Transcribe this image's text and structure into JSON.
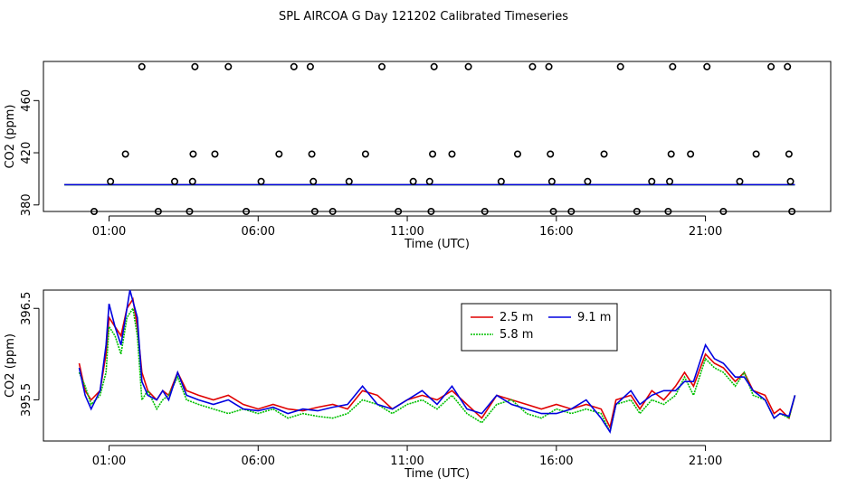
{
  "title": "SPL AIRCOA G  Day 121202  Calibrated Timeseries",
  "colors": {
    "red": "#e00000",
    "green": "#00c000",
    "blue": "#0000e0",
    "axis": "#000000"
  },
  "chart_data": [
    {
      "type": "scatter",
      "id": "top",
      "xlabel": "Time (UTC)",
      "ylabel": "CO2 (ppm)",
      "xticks": [
        {
          "v": 1,
          "label": "01:00"
        },
        {
          "v": 6,
          "label": "06:00"
        },
        {
          "v": 11,
          "label": "11:00"
        },
        {
          "v": 16,
          "label": "16:00"
        },
        {
          "v": 21,
          "label": "21:00"
        }
      ],
      "yticks": [
        380,
        420,
        460
      ],
      "xlim": [
        -1.2,
        25.2
      ],
      "ylim": [
        375,
        490
      ],
      "points": [
        [
          0.5,
          375
        ],
        [
          1.05,
          398
        ],
        [
          1.55,
          419
        ],
        [
          2.1,
          486
        ],
        [
          2.65,
          375
        ],
        [
          3.2,
          398
        ],
        [
          3.7,
          375
        ],
        [
          3.8,
          398
        ],
        [
          3.82,
          419
        ],
        [
          3.88,
          486
        ],
        [
          4.55,
          419
        ],
        [
          5.0,
          486
        ],
        [
          5.6,
          375
        ],
        [
          6.1,
          398
        ],
        [
          6.7,
          419
        ],
        [
          7.2,
          486
        ],
        [
          7.75,
          486
        ],
        [
          7.8,
          419
        ],
        [
          7.85,
          398
        ],
        [
          7.9,
          375
        ],
        [
          8.5,
          375
        ],
        [
          9.05,
          398
        ],
        [
          9.6,
          419
        ],
        [
          10.15,
          486
        ],
        [
          10.7,
          375
        ],
        [
          11.2,
          398
        ],
        [
          11.75,
          398
        ],
        [
          11.8,
          375
        ],
        [
          11.85,
          419
        ],
        [
          11.9,
          486
        ],
        [
          12.5,
          419
        ],
        [
          13.05,
          486
        ],
        [
          13.6,
          375
        ],
        [
          14.15,
          398
        ],
        [
          14.7,
          419
        ],
        [
          15.2,
          486
        ],
        [
          15.75,
          486
        ],
        [
          15.8,
          419
        ],
        [
          15.85,
          398
        ],
        [
          15.9,
          375
        ],
        [
          16.5,
          375
        ],
        [
          17.05,
          398
        ],
        [
          17.6,
          419
        ],
        [
          18.15,
          486
        ],
        [
          18.7,
          375
        ],
        [
          19.2,
          398
        ],
        [
          19.75,
          375
        ],
        [
          19.8,
          398
        ],
        [
          19.85,
          419
        ],
        [
          19.9,
          486
        ],
        [
          20.5,
          419
        ],
        [
          21.05,
          486
        ],
        [
          21.6,
          375
        ],
        [
          22.15,
          398
        ],
        [
          22.7,
          419
        ],
        [
          23.2,
          486
        ],
        [
          23.75,
          486
        ],
        [
          23.8,
          419
        ],
        [
          23.85,
          398
        ],
        [
          23.9,
          375
        ]
      ],
      "series": [
        {
          "name": "2.5 m",
          "color": "red",
          "y": 395.5
        },
        {
          "name": "5.8 m",
          "color": "green",
          "y": 395.4
        },
        {
          "name": "9.1 m",
          "color": "blue",
          "y": 395.5
        }
      ]
    },
    {
      "type": "line",
      "id": "bottom",
      "xlabel": "Time (UTC)",
      "ylabel": "CO2 (ppm)",
      "xticks": [
        {
          "v": 1,
          "label": "01:00"
        },
        {
          "v": 6,
          "label": "06:00"
        },
        {
          "v": 11,
          "label": "11:00"
        },
        {
          "v": 16,
          "label": "16:00"
        },
        {
          "v": 21,
          "label": "21:00"
        }
      ],
      "yticks": [
        {
          "v": 395.5,
          "label": "395.5"
        },
        {
          "v": 396.5,
          "label": "396.5"
        }
      ],
      "xlim": [
        -1.2,
        25.2
      ],
      "ylim": [
        395.05,
        396.7
      ],
      "legend": {
        "position": "top-center"
      },
      "series": [
        {
          "name": "2.5 m",
          "color": "red",
          "points": [
            [
              0,
              395.9
            ],
            [
              0.2,
              395.6
            ],
            [
              0.4,
              395.5
            ],
            [
              0.7,
              395.6
            ],
            [
              0.9,
              396.0
            ],
            [
              1.0,
              396.4
            ],
            [
              1.2,
              396.3
            ],
            [
              1.4,
              396.2
            ],
            [
              1.6,
              396.5
            ],
            [
              1.8,
              396.6
            ],
            [
              1.95,
              396.3
            ],
            [
              2.1,
              395.8
            ],
            [
              2.3,
              395.6
            ],
            [
              2.6,
              395.5
            ],
            [
              2.8,
              395.6
            ],
            [
              3.0,
              395.55
            ],
            [
              3.3,
              395.8
            ],
            [
              3.6,
              395.6
            ],
            [
              4.0,
              395.55
            ],
            [
              4.5,
              395.5
            ],
            [
              5.0,
              395.55
            ],
            [
              5.5,
              395.45
            ],
            [
              6.0,
              395.4
            ],
            [
              6.5,
              395.45
            ],
            [
              7.0,
              395.4
            ],
            [
              7.5,
              395.38
            ],
            [
              8.0,
              395.42
            ],
            [
              8.5,
              395.45
            ],
            [
              9.0,
              395.4
            ],
            [
              9.5,
              395.6
            ],
            [
              10.0,
              395.55
            ],
            [
              10.5,
              395.4
            ],
            [
              11.0,
              395.5
            ],
            [
              11.5,
              395.55
            ],
            [
              12.0,
              395.5
            ],
            [
              12.5,
              395.6
            ],
            [
              13.0,
              395.45
            ],
            [
              13.5,
              395.3
            ],
            [
              14.0,
              395.55
            ],
            [
              14.5,
              395.5
            ],
            [
              15.0,
              395.45
            ],
            [
              15.5,
              395.4
            ],
            [
              16.0,
              395.45
            ],
            [
              16.5,
              395.4
            ],
            [
              17.0,
              395.45
            ],
            [
              17.5,
              395.4
            ],
            [
              17.8,
              395.2
            ],
            [
              18.0,
              395.5
            ],
            [
              18.5,
              395.55
            ],
            [
              18.8,
              395.4
            ],
            [
              19.2,
              395.6
            ],
            [
              19.6,
              395.5
            ],
            [
              20.0,
              395.65
            ],
            [
              20.3,
              395.8
            ],
            [
              20.6,
              395.65
            ],
            [
              21.0,
              396.0
            ],
            [
              21.3,
              395.9
            ],
            [
              21.6,
              395.85
            ],
            [
              22.0,
              395.7
            ],
            [
              22.3,
              395.8
            ],
            [
              22.6,
              395.6
            ],
            [
              23.0,
              395.55
            ],
            [
              23.3,
              395.35
            ],
            [
              23.5,
              395.4
            ],
            [
              23.8,
              395.3
            ],
            [
              24.0,
              395.55
            ]
          ]
        },
        {
          "name": "5.8 m",
          "color": "green",
          "points": [
            [
              0,
              395.8
            ],
            [
              0.2,
              395.65
            ],
            [
              0.4,
              395.45
            ],
            [
              0.7,
              395.55
            ],
            [
              0.9,
              395.8
            ],
            [
              1.0,
              396.3
            ],
            [
              1.2,
              396.2
            ],
            [
              1.4,
              396.0
            ],
            [
              1.6,
              396.4
            ],
            [
              1.8,
              396.5
            ],
            [
              1.95,
              396.2
            ],
            [
              2.1,
              395.5
            ],
            [
              2.3,
              395.6
            ],
            [
              2.6,
              395.4
            ],
            [
              2.8,
              395.5
            ],
            [
              3.0,
              395.55
            ],
            [
              3.3,
              395.75
            ],
            [
              3.6,
              395.5
            ],
            [
              4.0,
              395.45
            ],
            [
              4.5,
              395.4
            ],
            [
              5.0,
              395.35
            ],
            [
              5.5,
              395.4
            ],
            [
              6.0,
              395.35
            ],
            [
              6.5,
              395.4
            ],
            [
              7.0,
              395.3
            ],
            [
              7.5,
              395.35
            ],
            [
              8.0,
              395.32
            ],
            [
              8.5,
              395.3
            ],
            [
              9.0,
              395.35
            ],
            [
              9.5,
              395.5
            ],
            [
              10.0,
              395.45
            ],
            [
              10.5,
              395.35
            ],
            [
              11.0,
              395.45
            ],
            [
              11.5,
              395.5
            ],
            [
              12.0,
              395.4
            ],
            [
              12.5,
              395.55
            ],
            [
              13.0,
              395.35
            ],
            [
              13.5,
              395.25
            ],
            [
              14.0,
              395.45
            ],
            [
              14.5,
              395.5
            ],
            [
              15.0,
              395.35
            ],
            [
              15.5,
              395.3
            ],
            [
              16.0,
              395.4
            ],
            [
              16.5,
              395.35
            ],
            [
              17.0,
              395.4
            ],
            [
              17.5,
              395.35
            ],
            [
              17.8,
              395.15
            ],
            [
              18.0,
              395.45
            ],
            [
              18.5,
              395.5
            ],
            [
              18.8,
              395.35
            ],
            [
              19.2,
              395.5
            ],
            [
              19.6,
              395.45
            ],
            [
              20.0,
              395.55
            ],
            [
              20.3,
              395.75
            ],
            [
              20.6,
              395.55
            ],
            [
              21.0,
              395.95
            ],
            [
              21.3,
              395.85
            ],
            [
              21.6,
              395.8
            ],
            [
              22.0,
              395.65
            ],
            [
              22.3,
              395.8
            ],
            [
              22.6,
              395.55
            ],
            [
              23.0,
              395.5
            ],
            [
              23.3,
              395.3
            ],
            [
              23.5,
              395.35
            ],
            [
              23.8,
              395.3
            ],
            [
              24.0,
              395.55
            ]
          ]
        },
        {
          "name": "9.1 m",
          "color": "blue",
          "points": [
            [
              0,
              395.85
            ],
            [
              0.2,
              395.55
            ],
            [
              0.4,
              395.4
            ],
            [
              0.7,
              395.6
            ],
            [
              0.9,
              396.1
            ],
            [
              1.0,
              396.55
            ],
            [
              1.2,
              396.3
            ],
            [
              1.4,
              396.1
            ],
            [
              1.6,
              396.5
            ],
            [
              1.7,
              396.7
            ],
            [
              1.95,
              396.4
            ],
            [
              2.1,
              395.7
            ],
            [
              2.3,
              395.55
            ],
            [
              2.6,
              395.5
            ],
            [
              2.8,
              395.6
            ],
            [
              3.0,
              395.5
            ],
            [
              3.3,
              395.8
            ],
            [
              3.6,
              395.55
            ],
            [
              4.0,
              395.5
            ],
            [
              4.5,
              395.45
            ],
            [
              5.0,
              395.5
            ],
            [
              5.5,
              395.4
            ],
            [
              6.0,
              395.38
            ],
            [
              6.5,
              395.42
            ],
            [
              7.0,
              395.35
            ],
            [
              7.5,
              395.4
            ],
            [
              8.0,
              395.38
            ],
            [
              8.5,
              395.42
            ],
            [
              9.0,
              395.45
            ],
            [
              9.5,
              395.65
            ],
            [
              10.0,
              395.45
            ],
            [
              10.5,
              395.4
            ],
            [
              11.0,
              395.5
            ],
            [
              11.5,
              395.6
            ],
            [
              12.0,
              395.45
            ],
            [
              12.5,
              395.65
            ],
            [
              13.0,
              395.4
            ],
            [
              13.5,
              395.35
            ],
            [
              14.0,
              395.55
            ],
            [
              14.5,
              395.45
            ],
            [
              15.0,
              395.4
            ],
            [
              15.5,
              395.35
            ],
            [
              16.0,
              395.35
            ],
            [
              16.5,
              395.4
            ],
            [
              17.0,
              395.5
            ],
            [
              17.5,
              395.3
            ],
            [
              17.8,
              395.15
            ],
            [
              18.0,
              395.45
            ],
            [
              18.5,
              395.6
            ],
            [
              18.8,
              395.45
            ],
            [
              19.2,
              395.55
            ],
            [
              19.6,
              395.6
            ],
            [
              20.0,
              395.6
            ],
            [
              20.3,
              395.7
            ],
            [
              20.6,
              395.7
            ],
            [
              21.0,
              396.1
            ],
            [
              21.3,
              395.95
            ],
            [
              21.6,
              395.9
            ],
            [
              22.0,
              395.75
            ],
            [
              22.3,
              395.75
            ],
            [
              22.6,
              395.6
            ],
            [
              23.0,
              395.5
            ],
            [
              23.3,
              395.3
            ],
            [
              23.5,
              395.35
            ],
            [
              23.8,
              395.32
            ],
            [
              24.0,
              395.55
            ]
          ]
        }
      ]
    }
  ]
}
